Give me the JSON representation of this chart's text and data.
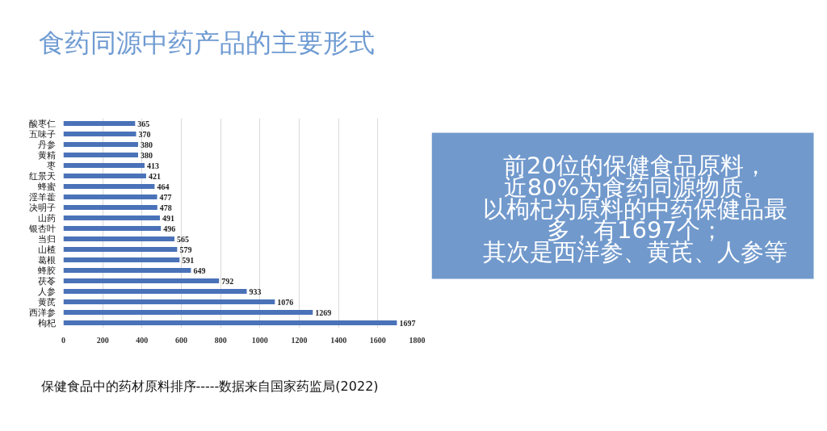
{
  "chart_data": [
    {
      "type": "bar",
      "title": "食药同源中药产品的主要形式",
      "orientation": "horizontal",
      "categories": [
        "酸枣仁",
        "五味子",
        "丹参",
        "黄精",
        "枣",
        "红景天",
        "蜂蜜",
        "淫羊藿",
        "决明子",
        "山药",
        "银杏叶",
        "当归",
        "山楂",
        "葛根",
        "蜂胶",
        "茯苓",
        "人参",
        "黄芪",
        "西洋参",
        "枸杞"
      ],
      "values": [
        365,
        370,
        380,
        380,
        413,
        421,
        464,
        477,
        478,
        491,
        496,
        565,
        579,
        591,
        649,
        792,
        933,
        1076,
        1269,
        1697
      ],
      "color": "#4a72b8",
      "xlim": [
        0,
        1800
      ],
      "xticks": [
        0,
        200,
        400,
        600,
        800,
        1000,
        1200,
        1400,
        1600,
        1800
      ],
      "grid": "x",
      "data_labels": true,
      "annotations": [
        "保健食品中的药材原料排序-----数据来自国家药监局(2022)"
      ]
    },
    {
      "type": "other",
      "annotations": [
        "前20位的保健食品原料，",
        "近80%为食药同源物质。",
        "以枸杞为原料的中药保健品最",
        "多，有1697个；",
        "其次是西洋参、黄芪、人参等"
      ]
    }
  ]
}
